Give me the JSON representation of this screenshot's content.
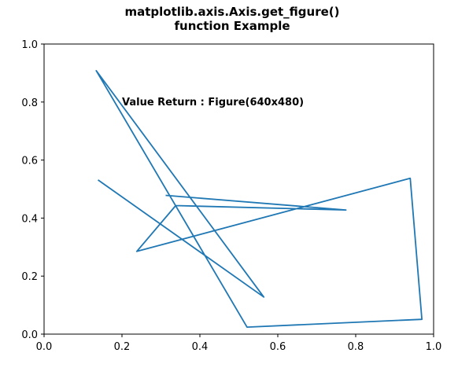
{
  "chart_data": {
    "type": "line",
    "title_lines": [
      "matplotlib.axis.Axis.get_figure()",
      "function Example"
    ],
    "annotation": {
      "text": "Value Return : Figure(640x480)",
      "x": 0.2,
      "y": 0.8
    },
    "xlabel": "",
    "ylabel": "",
    "xlim": [
      0.0,
      1.0
    ],
    "ylim": [
      0.0,
      1.0
    ],
    "xticks": [
      "0.0",
      "0.2",
      "0.4",
      "0.6",
      "0.8",
      "1.0"
    ],
    "yticks": [
      "0.0",
      "0.2",
      "0.4",
      "0.6",
      "0.8",
      "1.0"
    ],
    "grid": false,
    "series": [
      {
        "color": "#1f77b4",
        "x": [
          0.14,
          0.564,
          0.134,
          0.521,
          0.97,
          0.94,
          0.238,
          0.338,
          0.775,
          0.314
        ],
        "y": [
          0.53,
          0.128,
          0.908,
          0.024,
          0.051,
          0.537,
          0.285,
          0.443,
          0.428,
          0.478
        ]
      }
    ]
  }
}
